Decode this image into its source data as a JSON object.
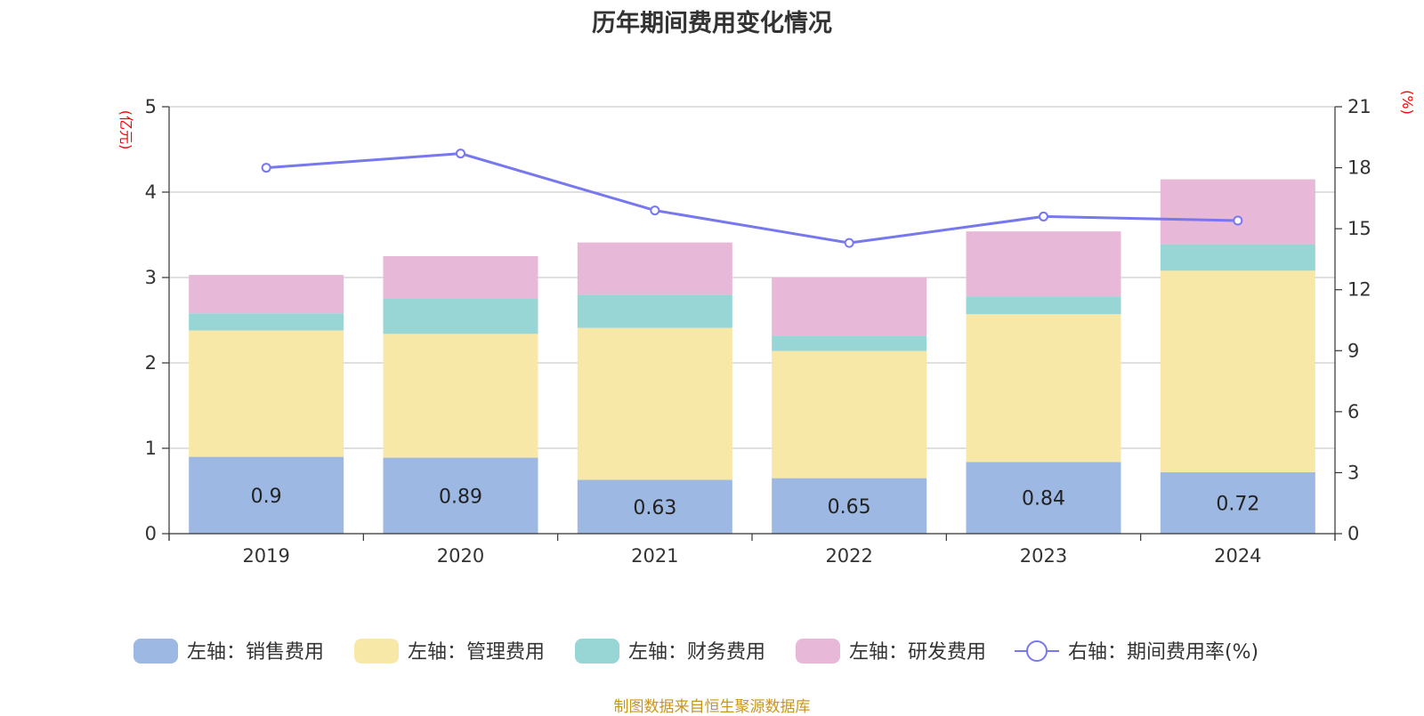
{
  "chart_data": {
    "type": "bar",
    "title": "历年期间费用变化情况",
    "categories": [
      "2019",
      "2020",
      "2021",
      "2022",
      "2023",
      "2024"
    ],
    "series": [
      {
        "name": "左轴：销售费用",
        "axis": "left",
        "kind": "stacked-bar",
        "color": "#9db8e2",
        "values": [
          0.9,
          0.89,
          0.63,
          0.65,
          0.84,
          0.72
        ]
      },
      {
        "name": "左轴：管理费用",
        "axis": "left",
        "kind": "stacked-bar",
        "color": "#f8e8a8",
        "values": [
          1.48,
          1.45,
          1.78,
          1.49,
          1.73,
          2.36
        ]
      },
      {
        "name": "左轴：财务费用",
        "axis": "left",
        "kind": "stacked-bar",
        "color": "#98d5d5",
        "values": [
          0.2,
          0.41,
          0.39,
          0.18,
          0.21,
          0.31
        ]
      },
      {
        "name": "左轴：研发费用",
        "axis": "left",
        "kind": "stacked-bar",
        "color": "#e8b8d8",
        "values": [
          0.45,
          0.5,
          0.61,
          0.68,
          0.76,
          0.76
        ]
      },
      {
        "name": "右轴：期间费用率(%)",
        "axis": "right",
        "kind": "line",
        "color": "#7777ee",
        "values": [
          18.0,
          18.7,
          15.9,
          14.3,
          15.6,
          15.4
        ]
      }
    ],
    "data_labels_series": "左轴：销售费用",
    "y_left": {
      "unit": "(亿元)",
      "ylim": [
        0,
        5
      ],
      "ticks": [
        "0",
        "1",
        "2",
        "3",
        "4",
        "5"
      ]
    },
    "y_right": {
      "unit": "(%)",
      "ylim": [
        0,
        21
      ],
      "ticks": [
        "0",
        "3",
        "6",
        "9",
        "12",
        "15",
        "18",
        "21"
      ]
    },
    "grid": true,
    "legend_position": "bottom"
  },
  "source_note": "制图数据来自恒生聚源数据库"
}
